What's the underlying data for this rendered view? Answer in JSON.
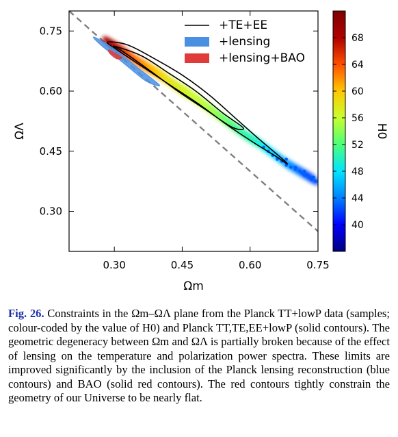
{
  "chart_data": {
    "type": "scatter",
    "title": "",
    "xlabel": "Ωm",
    "ylabel": "ΩΛ",
    "xlim": [
      0.2,
      0.75
    ],
    "ylim": [
      0.2,
      0.8
    ],
    "xticks": [
      "0.30",
      "0.45",
      "0.60",
      "0.75"
    ],
    "yticks": [
      "0.30",
      "0.45",
      "0.60",
      "0.75"
    ],
    "xtick_values": [
      0.3,
      0.45,
      0.6,
      0.75
    ],
    "ytick_values": [
      0.3,
      0.45,
      0.6,
      0.75
    ],
    "colorbar": {
      "label": "H0",
      "range": [
        36,
        72
      ],
      "ticks": [
        "40",
        "44",
        "48",
        "52",
        "56",
        "60",
        "64",
        "68"
      ],
      "tick_values": [
        40,
        44,
        48,
        52,
        56,
        60,
        64,
        68
      ],
      "colormap": [
        "#00007f",
        "#0000ff",
        "#0080ff",
        "#00e5ff",
        "#4cff7a",
        "#c8ff2e",
        "#ffc800",
        "#ff5000",
        "#b00000",
        "#7f0000"
      ]
    },
    "flat_line": {
      "style": "dashed",
      "color": "#7f7f7f",
      "x": [
        0.2,
        0.75
      ],
      "y": [
        0.8,
        0.25
      ]
    },
    "legend": {
      "placement": "top-right",
      "entries": [
        {
          "label": "+TE+EE",
          "color": "#000000",
          "style": "line"
        },
        {
          "label": "+lensing",
          "color": "#4a90e2",
          "style": "patch"
        },
        {
          "label": "+lensing+BAO",
          "color": "#e03a3a",
          "style": "patch"
        }
      ]
    },
    "samples": {
      "description_axis": "Ωm",
      "omega_m": [
        0.29,
        0.32,
        0.35,
        0.38,
        0.41,
        0.44,
        0.47,
        0.5,
        0.53,
        0.56,
        0.59,
        0.62,
        0.65,
        0.68,
        0.71,
        0.74
      ],
      "omega_lambda": [
        0.72,
        0.7,
        0.675,
        0.655,
        0.635,
        0.61,
        0.59,
        0.565,
        0.54,
        0.515,
        0.49,
        0.47,
        0.445,
        0.42,
        0.4,
        0.38
      ],
      "H0": [
        69,
        67,
        64,
        62,
        60,
        58,
        57,
        56,
        55,
        53,
        51,
        50,
        48,
        46,
        44,
        42
      ]
    },
    "series": [
      {
        "name": "+TE+EE",
        "color": "#000000",
        "kind": "contour",
        "x": [
          0.285,
          0.33,
          0.39,
          0.45,
          0.51,
          0.57,
          0.62,
          0.67,
          0.682,
          0.66,
          0.61,
          0.55,
          0.49,
          0.43,
          0.37,
          0.31
        ],
        "y": [
          0.722,
          0.715,
          0.68,
          0.64,
          0.59,
          0.53,
          0.48,
          0.432,
          0.418,
          0.435,
          0.47,
          0.515,
          0.565,
          0.61,
          0.655,
          0.7
        ]
      },
      {
        "name": "+TE+EE",
        "color": "#000000",
        "kind": "contour",
        "x": [
          0.3,
          0.36,
          0.42,
          0.48,
          0.54,
          0.585,
          0.56,
          0.5,
          0.44,
          0.38,
          0.32
        ],
        "y": [
          0.712,
          0.688,
          0.645,
          0.6,
          0.545,
          0.508,
          0.51,
          0.555,
          0.6,
          0.65,
          0.698
        ]
      },
      {
        "name": "+lensing",
        "color": "#4a90e2",
        "kind": "contour",
        "x": [
          0.255,
          0.3,
          0.35,
          0.4,
          0.37,
          0.32,
          0.27
        ],
        "y": [
          0.735,
          0.705,
          0.66,
          0.615,
          0.625,
          0.67,
          0.715
        ]
      },
      {
        "name": "+lensing+BAO",
        "color": "#e03a3a",
        "kind": "contour",
        "x": [
          0.288,
          0.305,
          0.318,
          0.305,
          0.29
        ],
        "y": [
          0.703,
          0.692,
          0.683,
          0.681,
          0.694
        ]
      }
    ]
  },
  "caption": {
    "label": "Fig. 26.",
    "text": " Constraints in the Ωm–ΩΛ plane from the Planck TT+lowP data (samples; colour-coded by the value of H0) and Planck TT,TE,EE+lowP (solid contours). The geometric degeneracy between Ωm and ΩΛ is partially broken because of the effect of lensing on the temperature and polarization power spectra. These limits are improved significantly by the inclusion of the Planck lensing reconstruction (blue contours) and BAO (solid red contours). The red contours tightly constrain the geometry of our Universe to be nearly flat."
  }
}
